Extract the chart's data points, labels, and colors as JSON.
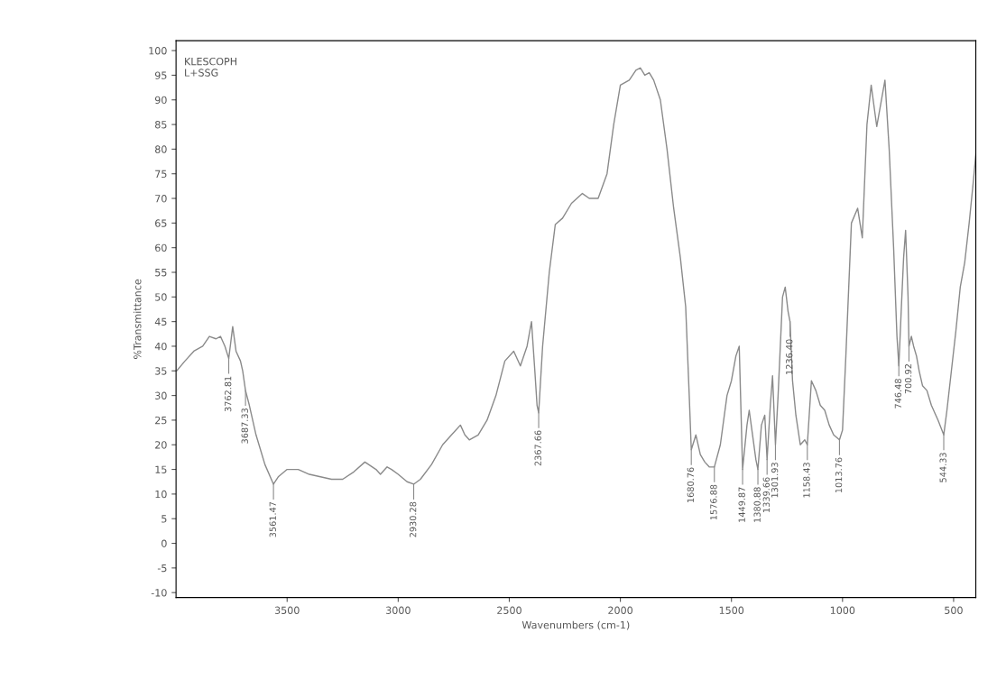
{
  "chart_data": {
    "type": "line",
    "title": "KLESCOPH\nL+SSG",
    "xlabel": "Wavenumbers (cm-1)",
    "ylabel": "%Transmittance",
    "xlim": [
      4000,
      400
    ],
    "ylim": [
      -11,
      102
    ],
    "xticks": [
      3500,
      3000,
      2500,
      2000,
      1500,
      1000,
      500
    ],
    "yticks": [
      -10,
      -5,
      0,
      5,
      10,
      15,
      20,
      25,
      30,
      35,
      40,
      45,
      50,
      55,
      60,
      65,
      70,
      75,
      80,
      85,
      90,
      95,
      100
    ],
    "grid": false,
    "legend": false,
    "marker": "none",
    "line_style": "solid",
    "series": [
      {
        "color": "#8a8a8a",
        "x": [
          3997,
          3960,
          3920,
          3880,
          3850,
          3820,
          3800,
          3780,
          3762.81,
          3745,
          3730,
          3710,
          3700,
          3687.33,
          3670,
          3640,
          3600,
          3561.47,
          3540,
          3500,
          3450,
          3400,
          3300,
          3250,
          3200,
          3150,
          3100,
          3080,
          3050,
          3030,
          3000,
          2960,
          2930.28,
          2900,
          2850,
          2800,
          2760,
          2720,
          2700,
          2680,
          2640,
          2600,
          2560,
          2520,
          2480,
          2450,
          2420,
          2400,
          2385,
          2375,
          2367.66,
          2350,
          2320,
          2293,
          2260,
          2220,
          2171,
          2140,
          2100,
          2060,
          2030,
          2000,
          1960,
          1930,
          1910,
          1890,
          1870,
          1850,
          1820,
          1790,
          1760,
          1730,
          1706,
          1690,
          1680.76,
          1660,
          1640,
          1620,
          1600,
          1576.88,
          1550,
          1520,
          1500,
          1480,
          1465,
          1449.87,
          1430,
          1420,
          1405,
          1390,
          1380.88,
          1365,
          1350,
          1339.66,
          1325,
          1315,
          1301.93,
          1290,
          1270,
          1258,
          1245,
          1236.4,
          1225,
          1210,
          1190,
          1170,
          1158.43,
          1140,
          1120,
          1100,
          1080,
          1060,
          1040,
          1013.76,
          1000,
          985,
          960,
          932,
          911,
          890,
          871,
          846,
          809,
          790,
          770,
          755,
          746.48,
          735,
          725,
          716,
          705,
          700.92,
          690,
          680,
          667,
          655,
          640,
          620,
          600,
          570,
          544.33,
          530,
          510,
          490,
          470,
          450,
          430,
          410,
          400
        ],
        "values": [
          35,
          37,
          39,
          40,
          42,
          41.5,
          42,
          40,
          37.5,
          44,
          39,
          37,
          35,
          31,
          28,
          22,
          16,
          12,
          13.5,
          15,
          15,
          14,
          13,
          13,
          14.5,
          16.5,
          15,
          14,
          15.5,
          15,
          14,
          12.5,
          12,
          13,
          16,
          20,
          22,
          24,
          22,
          21,
          22,
          25,
          30,
          37,
          39,
          36,
          40,
          45,
          35,
          28,
          26.5,
          40,
          55,
          64.7,
          66,
          69,
          71,
          70,
          70,
          75,
          85,
          93,
          94,
          96,
          96.5,
          95,
          95.5,
          94,
          90,
          80,
          68,
          58,
          48,
          30,
          19,
          22,
          18,
          16.5,
          15.5,
          15.5,
          20,
          30,
          33,
          38,
          40,
          15,
          24,
          27,
          22,
          17,
          15,
          24,
          26,
          17,
          28,
          34,
          20,
          30,
          50,
          52,
          47,
          45,
          33,
          26,
          20,
          21,
          20,
          33,
          31,
          28,
          27,
          24,
          22,
          21,
          23,
          38,
          65,
          68,
          62,
          85,
          93,
          84.6,
          94,
          80,
          60,
          42,
          36,
          48,
          58,
          63.5,
          50,
          40,
          42,
          40,
          38,
          35,
          32,
          31,
          28,
          25,
          22,
          27,
          35,
          43,
          52,
          57,
          65,
          74,
          79
        ]
      }
    ],
    "annotations": [
      {
        "text": "3762.81",
        "x": 3762.81,
        "y": 37.5
      },
      {
        "text": "3687.33",
        "x": 3687.33,
        "y": 31
      },
      {
        "text": "3561.47",
        "x": 3561.47,
        "y": 12
      },
      {
        "text": "2930.28",
        "x": 2930.28,
        "y": 12
      },
      {
        "text": "2367.66",
        "x": 2367.66,
        "y": 26.5
      },
      {
        "text": "1680.76",
        "x": 1680.76,
        "y": 19
      },
      {
        "text": "1576.88",
        "x": 1576.88,
        "y": 15.5
      },
      {
        "text": "1449.87",
        "x": 1449.87,
        "y": 15
      },
      {
        "text": "1380.88",
        "x": 1380.88,
        "y": 15
      },
      {
        "text": "1339.66",
        "x": 1339.66,
        "y": 17
      },
      {
        "text": "1301.93",
        "x": 1301.93,
        "y": 20
      },
      {
        "text": "1236.40",
        "x": 1236.4,
        "y": 45
      },
      {
        "text": "1158.43",
        "x": 1158.43,
        "y": 20
      },
      {
        "text": "1013.76",
        "x": 1013.76,
        "y": 21
      },
      {
        "text": "746.48",
        "x": 746.48,
        "y": 37
      },
      {
        "text": "700.92",
        "x": 700.92,
        "y": 40
      },
      {
        "text": "544.33",
        "x": 544.33,
        "y": 22
      }
    ]
  }
}
